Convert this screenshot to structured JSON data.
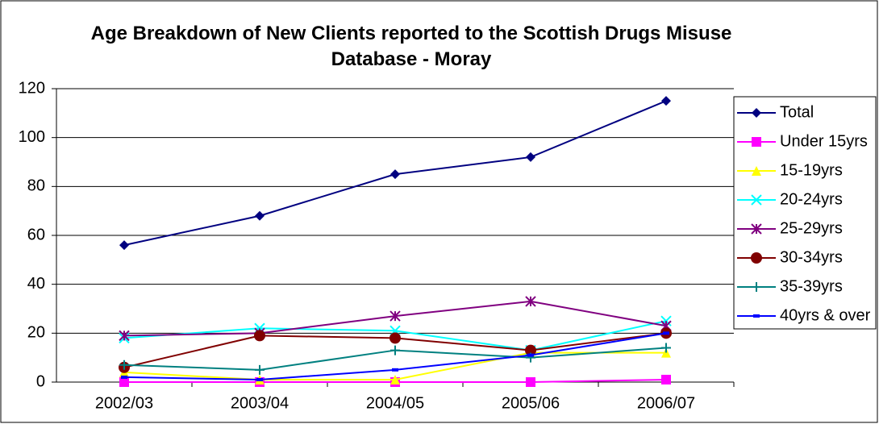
{
  "chart_data": {
    "type": "line",
    "title": "Age Breakdown of New Clients reported to the Scottish Drugs Misuse Database - Moray",
    "categories": [
      "2002/03",
      "2003/04",
      "2004/05",
      "2005/06",
      "2006/07"
    ],
    "series": [
      {
        "name": "Total",
        "color": "#000080",
        "marker": "diamond",
        "values": [
          56,
          68,
          85,
          92,
          115
        ]
      },
      {
        "name": "Under 15yrs",
        "color": "#ff00ff",
        "marker": "square",
        "values": [
          0,
          0,
          0,
          0,
          1
        ]
      },
      {
        "name": "15-19yrs",
        "color": "#ffff00",
        "marker": "triangle",
        "values": [
          4,
          1,
          1,
          12,
          12
        ]
      },
      {
        "name": "20-24yrs",
        "color": "#00ffff",
        "marker": "x",
        "values": [
          18,
          22,
          21,
          13,
          25
        ]
      },
      {
        "name": "25-29yrs",
        "color": "#800080",
        "marker": "star",
        "values": [
          19,
          20,
          27,
          33,
          23
        ]
      },
      {
        "name": "30-34yrs",
        "color": "#800000",
        "marker": "circle",
        "values": [
          6,
          19,
          18,
          13,
          20
        ]
      },
      {
        "name": "35-39yrs",
        "color": "#008080",
        "marker": "plus",
        "values": [
          7,
          5,
          13,
          10,
          14
        ]
      },
      {
        "name": "40yrs & over",
        "color": "#0000ff",
        "marker": "dash",
        "values": [
          2,
          1,
          5,
          11,
          20
        ]
      }
    ],
    "ylim": [
      0,
      120
    ],
    "yticks": [
      0,
      20,
      40,
      60,
      80,
      100,
      120
    ],
    "grid": true,
    "legend": "right"
  }
}
